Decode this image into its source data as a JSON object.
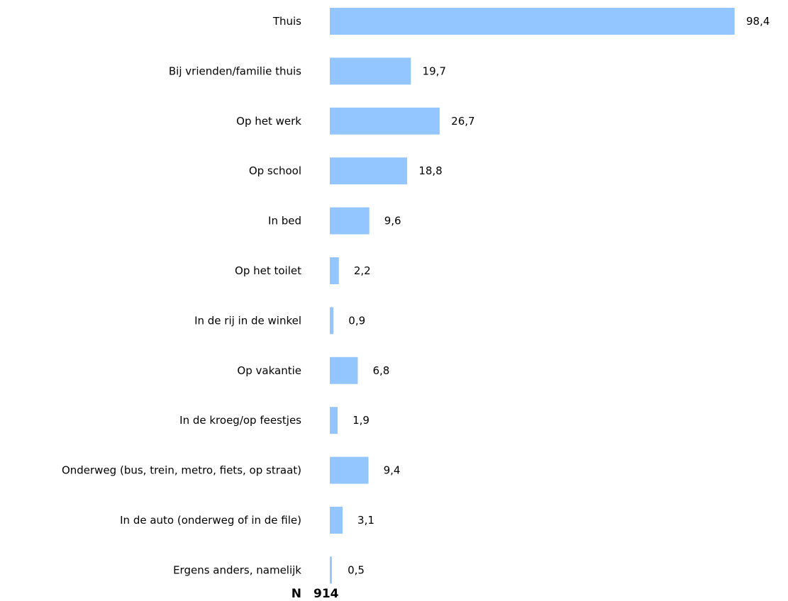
{
  "chart_data": {
    "type": "bar",
    "orientation": "horizontal",
    "categories": [
      "Thuis",
      "Bij vrienden/familie thuis",
      "Op het werk",
      "Op school",
      "In bed",
      "Op het toilet",
      "In de rij in de winkel",
      "Op vakantie",
      "In de kroeg/op feestjes",
      "Onderweg (bus, trein, metro, fiets, op straat)",
      "In de auto (onderweg of in de file)",
      "Ergens anders, namelijk"
    ],
    "values": [
      98.4,
      19.7,
      26.7,
      18.8,
      9.6,
      2.2,
      0.9,
      6.8,
      1.9,
      9.4,
      3.1,
      0.5
    ],
    "value_labels": [
      "98,4",
      "19,7",
      "26,7",
      "18,8",
      "9,6",
      "2,2",
      "0,9",
      "6,8",
      "1,9",
      "9,4",
      "3,1",
      "0,5"
    ],
    "xlim": [
      0,
      100
    ],
    "grid": false,
    "bar_color": "#93C6FF",
    "n_label": "N",
    "n_value": "914"
  }
}
